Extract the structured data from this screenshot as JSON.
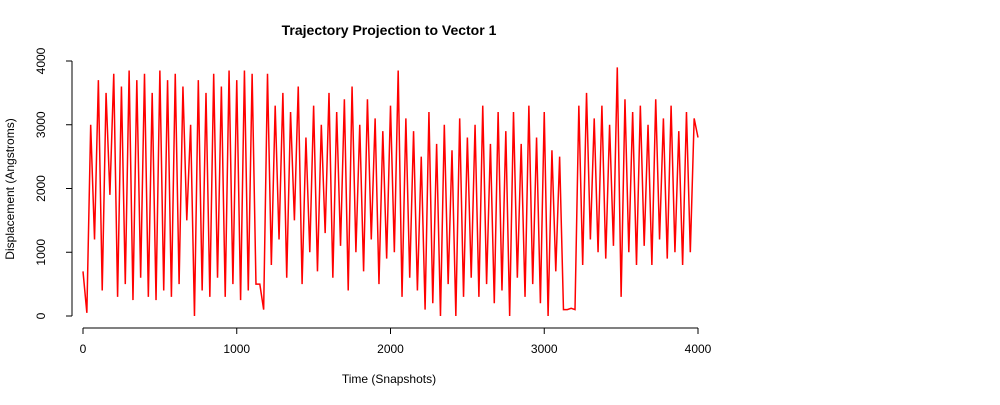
{
  "chart_data": {
    "type": "line",
    "title": "Trajectory Projection to Vector 1",
    "xlabel": "Time (Snapshots)",
    "ylabel": "Displacement (Angstroms)",
    "xlim": [
      0,
      4000
    ],
    "ylim": [
      0,
      4000
    ],
    "xticks": [
      0,
      1000,
      2000,
      3000,
      4000
    ],
    "yticks": [
      0,
      1000,
      2000,
      3000,
      4000
    ],
    "series": [
      {
        "color": "#ff0000",
        "x": [
          0,
          25,
          50,
          75,
          100,
          125,
          150,
          175,
          200,
          225,
          250,
          275,
          300,
          325,
          350,
          375,
          400,
          425,
          450,
          475,
          500,
          525,
          550,
          575,
          600,
          625,
          650,
          675,
          700,
          725,
          750,
          775,
          800,
          825,
          850,
          875,
          900,
          925,
          950,
          975,
          1000,
          1025,
          1050,
          1075,
          1100,
          1125,
          1150,
          1175,
          1200,
          1225,
          1250,
          1275,
          1300,
          1325,
          1350,
          1375,
          1400,
          1425,
          1450,
          1475,
          1500,
          1525,
          1550,
          1575,
          1600,
          1625,
          1650,
          1675,
          1700,
          1725,
          1750,
          1775,
          1800,
          1825,
          1850,
          1875,
          1900,
          1925,
          1950,
          1975,
          2000,
          2025,
          2050,
          2075,
          2100,
          2125,
          2150,
          2175,
          2200,
          2225,
          2250,
          2275,
          2300,
          2325,
          2350,
          2375,
          2400,
          2425,
          2450,
          2475,
          2500,
          2525,
          2550,
          2575,
          2600,
          2625,
          2650,
          2675,
          2700,
          2725,
          2750,
          2775,
          2800,
          2825,
          2850,
          2875,
          2900,
          2925,
          2950,
          2975,
          3000,
          3025,
          3050,
          3075,
          3100,
          3125,
          3150,
          3175,
          3200,
          3225,
          3250,
          3275,
          3300,
          3325,
          3350,
          3375,
          3400,
          3425,
          3450,
          3475,
          3500,
          3525,
          3550,
          3575,
          3600,
          3625,
          3650,
          3675,
          3700,
          3725,
          3750,
          3775,
          3800,
          3825,
          3850,
          3875,
          3900,
          3925,
          3950,
          3975,
          4000
        ],
        "values": [
          700,
          50,
          3000,
          1200,
          3700,
          400,
          3500,
          1900,
          3800,
          300,
          3600,
          500,
          3850,
          250,
          3700,
          600,
          3800,
          300,
          3500,
          250,
          3850,
          400,
          3700,
          300,
          3800,
          500,
          3600,
          1500,
          3000,
          0,
          3700,
          400,
          3500,
          300,
          3800,
          600,
          3600,
          300,
          3850,
          500,
          3700,
          250,
          3850,
          400,
          3800,
          500,
          500,
          100,
          3800,
          800,
          3300,
          1200,
          3500,
          600,
          3200,
          1500,
          3600,
          500,
          2800,
          1000,
          3300,
          700,
          3000,
          1300,
          3500,
          600,
          3200,
          1100,
          3400,
          400,
          3600,
          1000,
          3000,
          700,
          3400,
          1200,
          3100,
          500,
          2900,
          900,
          3300,
          1000,
          3850,
          300,
          3100,
          600,
          2900,
          400,
          2500,
          100,
          3200,
          200,
          2700,
          0,
          3000,
          500,
          2600,
          0,
          3100,
          300,
          2800,
          600,
          3000,
          300,
          3300,
          500,
          2700,
          200,
          3200,
          400,
          2900,
          0,
          3200,
          600,
          2700,
          300,
          3300,
          500,
          2800,
          200,
          3200,
          0,
          2600,
          700,
          2500,
          100,
          100,
          120,
          100,
          3300,
          800,
          3500,
          1200,
          3100,
          1000,
          3300,
          900,
          3000,
          1100,
          3900,
          300,
          3400,
          1000,
          3200,
          800,
          3300,
          1100,
          3000,
          800,
          3400,
          1200,
          3100,
          900,
          3300,
          1000,
          2900,
          800,
          3200,
          1000,
          3100,
          2800
        ]
      }
    ]
  }
}
